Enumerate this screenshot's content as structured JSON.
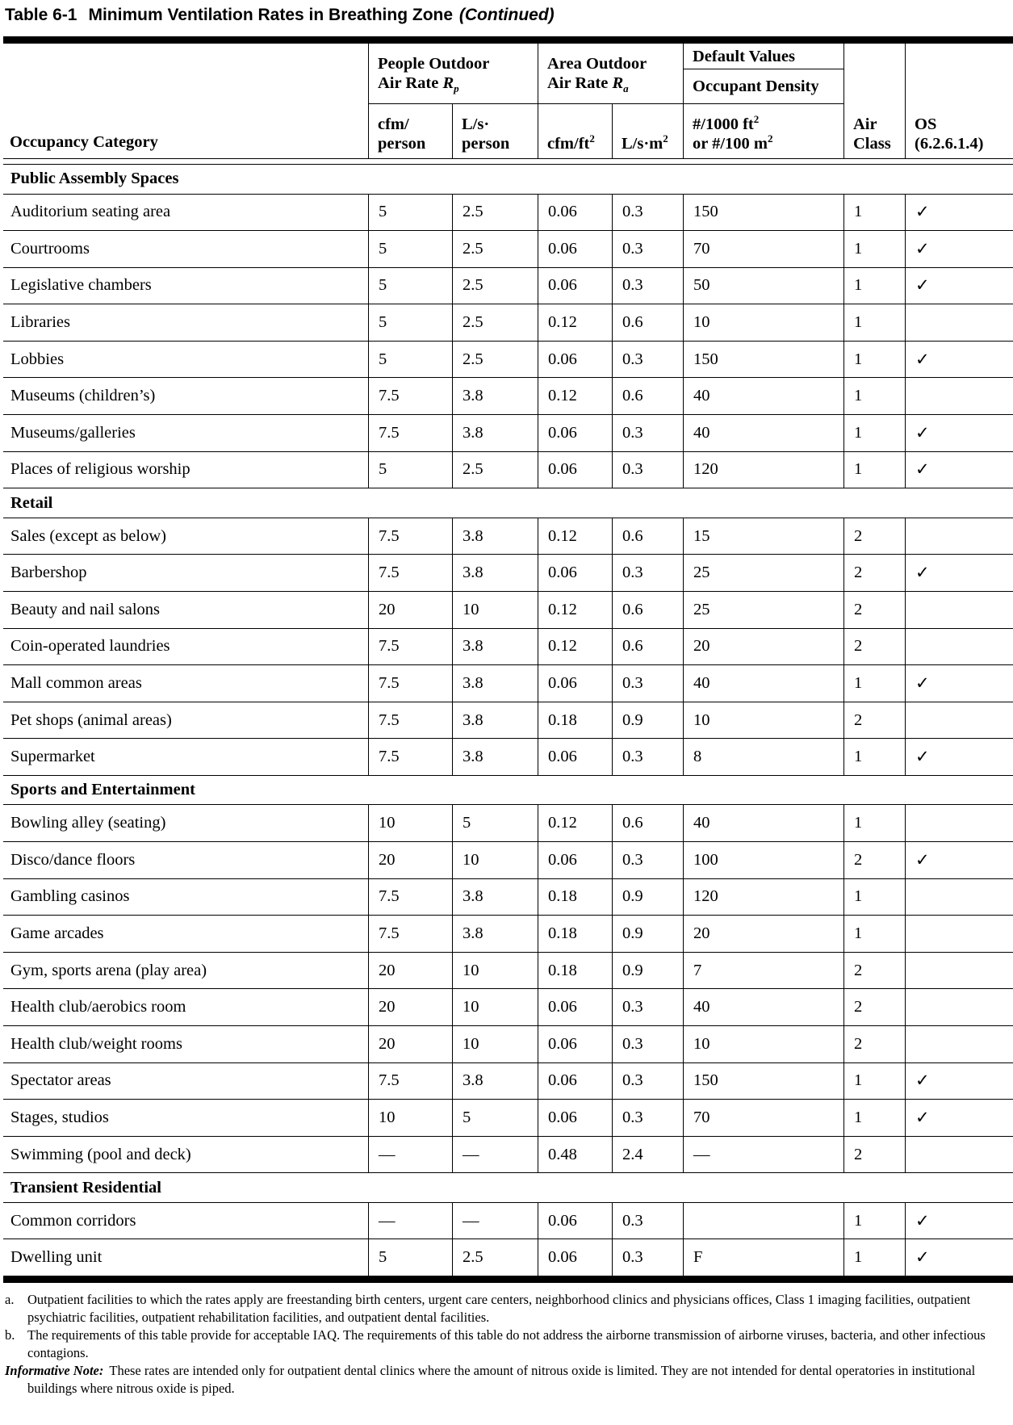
{
  "title": {
    "label": "Table 6-1",
    "text": "Minimum Ventilation Rates in Breathing Zone",
    "continued": "(Continued)"
  },
  "table": {
    "header": {
      "occupancy": "Occupancy Category",
      "people_rate": {
        "line1": "People Outdoor",
        "line2": "Air Rate ",
        "symbol": "R",
        "subscript": "p"
      },
      "area_rate": {
        "line1": "Area Outdoor",
        "line2": "Air Rate ",
        "symbol": "R",
        "subscript": "a"
      },
      "default_values": "Default Values",
      "occupant_density": "Occupant Density",
      "units": {
        "cfm_person_l1": "cfm/",
        "cfm_person_l2": "person",
        "ls_person_l1": "L/s·",
        "ls_person_l2": "person",
        "cfm_ft2_base": "cfm/ft",
        "cfm_ft2_sup": "2",
        "ls_m2_base": "L/s·m",
        "ls_m2_sup": "2",
        "density_l1_base": "#/1000 ft",
        "density_l1_sup": "2",
        "density_l2_base": "or #/100 m",
        "density_l2_sup": "2"
      },
      "air_class_l1": "Air",
      "air_class_l2": "Class",
      "os_l1": "OS",
      "os_l2": "(6.2.6.1.4)"
    }
  },
  "sections": [
    {
      "name": "Public Assembly Spaces",
      "rows": [
        {
          "category": "Auditorium seating area",
          "indent": false,
          "rp_cfm": "5",
          "rp_ls": "2.5",
          "ra_cfm": "0.06",
          "ra_ls": "0.3",
          "density": "150",
          "air_class": "1",
          "os": "✓"
        },
        {
          "category": "Courtrooms",
          "indent": false,
          "rp_cfm": "5",
          "rp_ls": "2.5",
          "ra_cfm": "0.06",
          "ra_ls": "0.3",
          "density": "70",
          "air_class": "1",
          "os": "✓"
        },
        {
          "category": "Legislative chambers",
          "indent": false,
          "rp_cfm": "5",
          "rp_ls": "2.5",
          "ra_cfm": "0.06",
          "ra_ls": "0.3",
          "density": "50",
          "air_class": "1",
          "os": "✓"
        },
        {
          "category": "Libraries",
          "indent": false,
          "rp_cfm": "5",
          "rp_ls": "2.5",
          "ra_cfm": "0.12",
          "ra_ls": "0.6",
          "density": "10",
          "air_class": "1",
          "os": ""
        },
        {
          "category": "Lobbies",
          "indent": false,
          "rp_cfm": "5",
          "rp_ls": "2.5",
          "ra_cfm": "0.06",
          "ra_ls": "0.3",
          "density": "150",
          "air_class": "1",
          "os": "✓"
        },
        {
          "category": "Museums (children’s)",
          "indent": false,
          "rp_cfm": "7.5",
          "rp_ls": "3.8",
          "ra_cfm": "0.12",
          "ra_ls": "0.6",
          "density": "40",
          "air_class": "1",
          "os": ""
        },
        {
          "category": "Museums/galleries",
          "indent": false,
          "rp_cfm": "7.5",
          "rp_ls": "3.8",
          "ra_cfm": "0.06",
          "ra_ls": "0.3",
          "density": "40",
          "air_class": "1",
          "os": "✓"
        },
        {
          "category": "Places of religious worship",
          "indent": false,
          "rp_cfm": "5",
          "rp_ls": "2.5",
          "ra_cfm": "0.06",
          "ra_ls": "0.3",
          "density": "120",
          "air_class": "1",
          "os": "✓"
        }
      ]
    },
    {
      "name": "Retail",
      "rows": [
        {
          "category": "Sales (except as below)",
          "indent": false,
          "rp_cfm": "7.5",
          "rp_ls": "3.8",
          "ra_cfm": "0.12",
          "ra_ls": "0.6",
          "density": "15",
          "air_class": "2",
          "os": ""
        },
        {
          "category": "Barbershop",
          "indent": true,
          "rp_cfm": "7.5",
          "rp_ls": "3.8",
          "ra_cfm": "0.06",
          "ra_ls": "0.3",
          "density": "25",
          "air_class": "2",
          "os": "✓"
        },
        {
          "category": "Beauty and nail salons",
          "indent": true,
          "rp_cfm": "20",
          "rp_ls": "10",
          "ra_cfm": "0.12",
          "ra_ls": "0.6",
          "density": "25",
          "air_class": "2",
          "os": ""
        },
        {
          "category": "Coin-operated laundries",
          "indent": true,
          "rp_cfm": "7.5",
          "rp_ls": "3.8",
          "ra_cfm": "0.12",
          "ra_ls": "0.6",
          "density": "20",
          "air_class": "2",
          "os": ""
        },
        {
          "category": "Mall common areas",
          "indent": true,
          "rp_cfm": "7.5",
          "rp_ls": "3.8",
          "ra_cfm": "0.06",
          "ra_ls": "0.3",
          "density": "40",
          "air_class": "1",
          "os": "✓"
        },
        {
          "category": "Pet shops (animal areas)",
          "indent": true,
          "rp_cfm": "7.5",
          "rp_ls": "3.8",
          "ra_cfm": "0.18",
          "ra_ls": "0.9",
          "density": "10",
          "air_class": "2",
          "os": ""
        },
        {
          "category": "Supermarket",
          "indent": true,
          "rp_cfm": "7.5",
          "rp_ls": "3.8",
          "ra_cfm": "0.06",
          "ra_ls": "0.3",
          "density": "8",
          "air_class": "1",
          "os": "✓"
        }
      ]
    },
    {
      "name": "Sports and Entertainment",
      "rows": [
        {
          "category": "Bowling alley (seating)",
          "indent": false,
          "rp_cfm": "10",
          "rp_ls": "5",
          "ra_cfm": "0.12",
          "ra_ls": "0.6",
          "density": "40",
          "air_class": "1",
          "os": ""
        },
        {
          "category": "Disco/dance floors",
          "indent": false,
          "rp_cfm": "20",
          "rp_ls": "10",
          "ra_cfm": "0.06",
          "ra_ls": "0.3",
          "density": "100",
          "air_class": "2",
          "os": "✓"
        },
        {
          "category": "Gambling casinos",
          "indent": false,
          "rp_cfm": "7.5",
          "rp_ls": "3.8",
          "ra_cfm": "0.18",
          "ra_ls": "0.9",
          "density": "120",
          "air_class": "1",
          "os": ""
        },
        {
          "category": "Game arcades",
          "indent": false,
          "rp_cfm": "7.5",
          "rp_ls": "3.8",
          "ra_cfm": "0.18",
          "ra_ls": "0.9",
          "density": "20",
          "air_class": "1",
          "os": ""
        },
        {
          "category": "Gym, sports arena (play area)",
          "indent": false,
          "rp_cfm": "20",
          "rp_ls": "10",
          "ra_cfm": "0.18",
          "ra_ls": "0.9",
          "density": "7",
          "air_class": "2",
          "os": ""
        },
        {
          "category": "Health club/aerobics room",
          "indent": false,
          "rp_cfm": "20",
          "rp_ls": "10",
          "ra_cfm": "0.06",
          "ra_ls": "0.3",
          "density": "40",
          "air_class": "2",
          "os": ""
        },
        {
          "category": "Health club/weight rooms",
          "indent": false,
          "rp_cfm": "20",
          "rp_ls": "10",
          "ra_cfm": "0.06",
          "ra_ls": "0.3",
          "density": "10",
          "air_class": "2",
          "os": ""
        },
        {
          "category": "Spectator areas",
          "indent": false,
          "rp_cfm": "7.5",
          "rp_ls": "3.8",
          "ra_cfm": "0.06",
          "ra_ls": "0.3",
          "density": "150",
          "air_class": "1",
          "os": "✓"
        },
        {
          "category": "Stages, studios",
          "indent": false,
          "rp_cfm": "10",
          "rp_ls": "5",
          "ra_cfm": "0.06",
          "ra_ls": "0.3",
          "density": "70",
          "air_class": "1",
          "os": "✓"
        },
        {
          "category": "Swimming (pool and deck)",
          "indent": false,
          "rp_cfm": "—",
          "rp_ls": "—",
          "ra_cfm": "0.48",
          "ra_ls": "2.4",
          "density": "—",
          "air_class": "2",
          "os": ""
        }
      ]
    },
    {
      "name": "Transient Residential",
      "rows": [
        {
          "category": "Common corridors",
          "indent": false,
          "rp_cfm": "—",
          "rp_ls": "—",
          "ra_cfm": "0.06",
          "ra_ls": "0.3",
          "density": "",
          "air_class": "1",
          "os": "✓"
        },
        {
          "category": "Dwelling unit",
          "indent": false,
          "rp_cfm": "5",
          "rp_ls": "2.5",
          "ra_cfm": "0.06",
          "ra_ls": "0.3",
          "density": "F",
          "air_class": "1",
          "os": "✓"
        }
      ]
    }
  ],
  "footnotes": [
    {
      "label": "a.",
      "text": "Outpatient facilities to which the rates apply are freestanding birth centers, urgent care centers, neighborhood clinics and physicians offices, Class 1 imaging facilities, outpatient psychiatric facilities, outpatient rehabilitation facilities, and outpatient dental facilities."
    },
    {
      "label": "b.",
      "text": "The requirements of this table provide for acceptable IAQ. The requirements of this table do not address the airborne transmission of airborne viruses, bacteria, and other infectious contagions."
    },
    {
      "label": "Informative Note:",
      "text": "These rates are intended only for outpatient dental clinics where the amount of nitrous oxide is limited. They are not intended for dental operatories in institutional buildings where nitrous oxide is piped."
    }
  ]
}
